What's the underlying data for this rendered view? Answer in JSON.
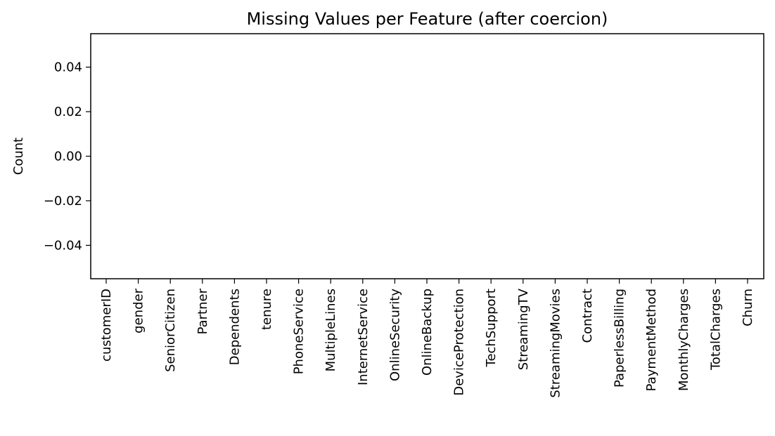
{
  "chart_data": {
    "type": "bar",
    "title": "Missing Values per Feature (after coercion)",
    "xlabel": "",
    "ylabel": "Count",
    "ylim": [
      -0.055,
      0.055
    ],
    "yticks": [
      {
        "value": 0.04,
        "label": "0.04"
      },
      {
        "value": 0.02,
        "label": "0.02"
      },
      {
        "value": 0.0,
        "label": "0.00"
      },
      {
        "value": -0.02,
        "label": "−0.02"
      },
      {
        "value": -0.04,
        "label": "−0.04"
      }
    ],
    "categories": [
      "customerID",
      "gender",
      "SeniorCitizen",
      "Partner",
      "Dependents",
      "tenure",
      "PhoneService",
      "MultipleLines",
      "InternetService",
      "OnlineSecurity",
      "OnlineBackup",
      "DeviceProtection",
      "TechSupport",
      "StreamingTV",
      "StreamingMovies",
      "Contract",
      "PaperlessBilling",
      "PaymentMethod",
      "MonthlyCharges",
      "TotalCharges",
      "Churn"
    ],
    "values": [
      0,
      0,
      0,
      0,
      0,
      0,
      0,
      0,
      0,
      0,
      0,
      0,
      0,
      0,
      0,
      0,
      0,
      0,
      0,
      0,
      0
    ],
    "grid": false,
    "bar_color": "#1f77b4"
  }
}
